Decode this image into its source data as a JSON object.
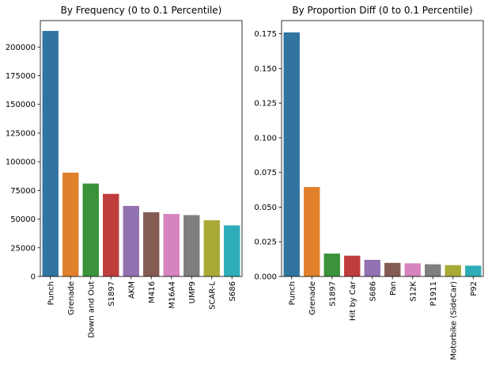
{
  "chart_data": [
    {
      "type": "bar",
      "title": "By Frequency (0 to 0.1 Percentile)",
      "xlabel": "",
      "ylabel": "",
      "categories": [
        "Punch",
        "Grenade",
        "Down and Out",
        "S1897",
        "AKM",
        "M416",
        "M16A4",
        "UMP9",
        "SCAR-L",
        "S686"
      ],
      "values": [
        214000,
        90500,
        81000,
        72000,
        61500,
        56000,
        54500,
        53500,
        49000,
        44500
      ],
      "colors": [
        "#3274a1",
        "#e1812c",
        "#3a923a",
        "#c03d3e",
        "#9372b2",
        "#845b53",
        "#d684bd",
        "#7f7f7f",
        "#a9aa35",
        "#2eadb8"
      ],
      "ylim": [
        0,
        223000
      ],
      "yticks": [
        0,
        25000,
        50000,
        75000,
        100000,
        125000,
        150000,
        175000,
        200000
      ],
      "ytick_labels": [
        "0",
        "25000",
        "50000",
        "75000",
        "100000",
        "125000",
        "150000",
        "175000",
        "200000"
      ],
      "grid": false,
      "legend": "none"
    },
    {
      "type": "bar",
      "title": "By Proportion Diff (0 to 0.1 Percentile)",
      "xlabel": "",
      "ylabel": "",
      "categories": [
        "Punch",
        "Grenade",
        "S1897",
        "Hit by Car",
        "S686",
        "Pan",
        "S12K",
        "P1911",
        "Motorbike (SideCar)",
        "P92"
      ],
      "values": [
        0.176,
        0.0645,
        0.0165,
        0.015,
        0.012,
        0.0098,
        0.0095,
        0.0088,
        0.0082,
        0.0078
      ],
      "colors": [
        "#3274a1",
        "#e1812c",
        "#3a923a",
        "#c03d3e",
        "#9372b2",
        "#845b53",
        "#d684bd",
        "#7f7f7f",
        "#a9aa35",
        "#2eadb8"
      ],
      "ylim": [
        0,
        0.1845
      ],
      "yticks": [
        0,
        0.025,
        0.05,
        0.075,
        0.1,
        0.125,
        0.15,
        0.175
      ],
      "ytick_labels": [
        "0.000",
        "0.025",
        "0.050",
        "0.075",
        "0.100",
        "0.125",
        "0.150",
        "0.175"
      ],
      "grid": false,
      "legend": "none"
    }
  ]
}
